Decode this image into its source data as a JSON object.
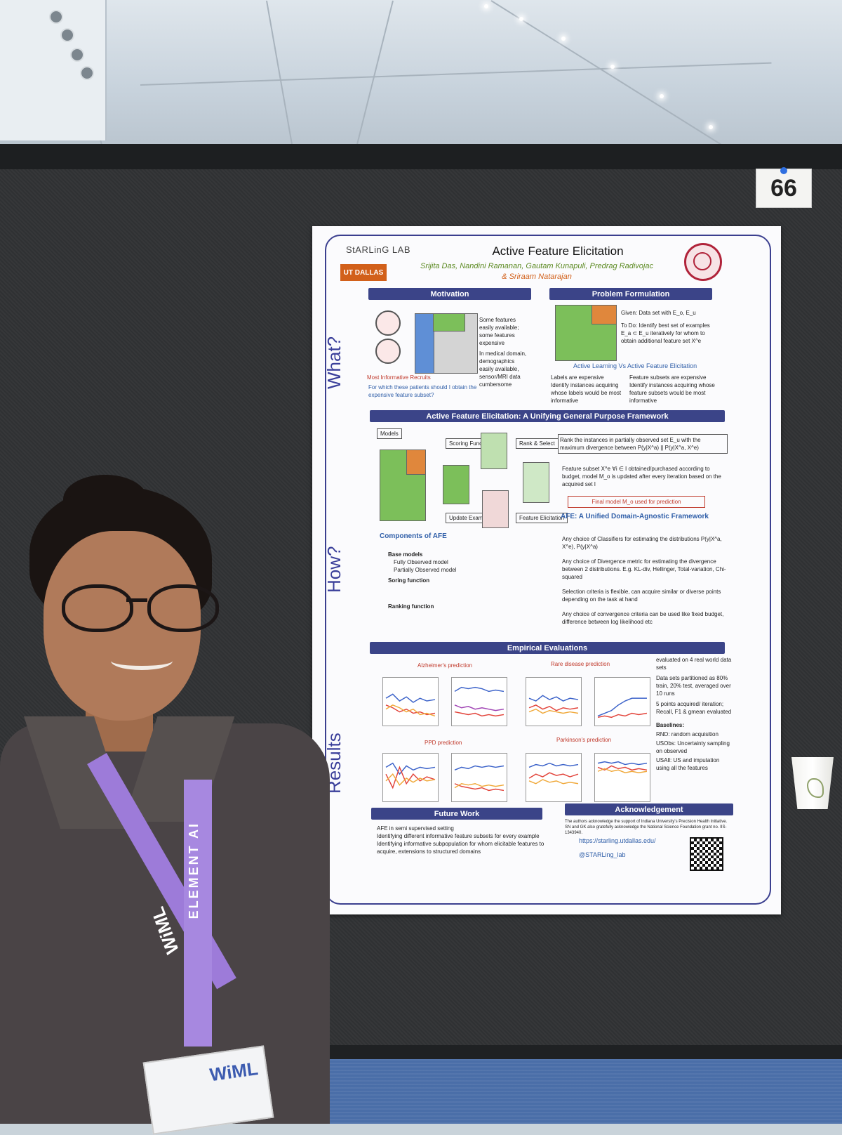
{
  "booth": {
    "number": "66"
  },
  "poster": {
    "lab": "StARLinG LAB",
    "institution": "UT DALLAS",
    "title": "Active Feature Elicitation",
    "authors": "Srijita Das, Nandini Ramanan, Gautam Kunapuli, Predrag Radivojac",
    "last_author": "& Sriraam Natarajan",
    "side_labels": [
      "What?",
      "How?",
      "Results"
    ],
    "sections": {
      "motivation": "Motivation",
      "problem": "Problem Formulation",
      "framework": "Active Feature Elicitation: A Unifying General Purpose Framework",
      "components": "Components of AFE",
      "unified": "AFE: A Unified Domain-Agnostic Framework",
      "empirical": "Empirical Evaluations",
      "future": "Future Work",
      "ack": "Acknowledgement"
    },
    "motivation_points": [
      "Some features easily available; some features expensive",
      "In medical domain, demographics easily available, sensor/MRI data cumbersome"
    ],
    "motivation_caption": "Most Informative Recruits",
    "motivation_question": "For which these patients should I obtain the expensive feature subset?",
    "problem_given": "Given: Data set with E_o, E_u",
    "problem_todo": "To Do: Identify best set of examples E_a ⊂ E_u iteratively for whom to obtain additional feature set X^e",
    "al_vs_afe": "Active Learning Vs Active Feature Elicitation",
    "al_points": [
      "Labels are expensive",
      "Identify instances acquiring whose labels would be most informative"
    ],
    "afe_points": [
      "Feature subsets are expensive",
      "Identify instances acquiring whose feature subsets would be most informative"
    ],
    "rank_text": "Rank the instances in partially observed set E_u with the maximum divergence between P(y|X^a) || P(y|X^a, X^e)",
    "feature_subset_text": "Feature subset X^e ∀i ∈ I obtained/purchased according to budget, model M_o is updated after every iteration based on the acquired set I",
    "final_model": "Final model M_o used for prediction",
    "cycle_labels": [
      "Models",
      "Scoring Function",
      "Rank & Select",
      "Feature Elicitation",
      "Update Examples"
    ],
    "components": [
      "Base models",
      "Fully Observed model",
      "Partially Observed model",
      "Soring function",
      "Ranking function"
    ],
    "unified_points": [
      "Any choice of Classifiers for estimating the distributions P(y|X^a, X^e), P(y|X^a)",
      "Any choice of Divergence metric for estimating the divergence between 2 distributions. E.g. KL-div, Hellinger, Total-variation, Chi-squared",
      "Selection criteria is flexible, can acquire similar or diverse points depending on the task at hand",
      "Any choice of convergence criteria can be used like fixed budget, difference between log likelihood etc"
    ],
    "chart_titles": [
      "Alzheimer's prediction",
      "Rare disease prediction",
      "PPD prediction",
      "Parkinson's prediction"
    ],
    "eval_points": [
      "evaluated on 4 real world data sets",
      "Data sets partitioned as 80% train, 20% test, averaged over 10 runs",
      "5 points acquired/ iteration; Recall, F1 & gmean evaluated"
    ],
    "baselines_title": "Baselines:",
    "baselines": [
      "RND: random acquisition",
      "USObs: Uncertainty sampling on observed",
      "USAll: US and imputation using all the features"
    ],
    "future_points": [
      "AFE in semi supervised setting",
      "Identifying different informative feature subsets for every example",
      "Identifying informative subpopulation for whom elicitable features to acquire, extensions to structured domains"
    ],
    "ack_text": "The authors acknowledge the support of Indiana University's Precision Health Initiative. SN and GK also gratefully acknowledge the National Science Foundation grant no. IIS-1343940.",
    "url": "https://starling.utdallas.edu/",
    "twitter": "@STARLing_lab"
  },
  "lanyard": {
    "text": "ELEMENT AI",
    "brand": "WiML"
  },
  "badge": {
    "text": "WiML"
  }
}
